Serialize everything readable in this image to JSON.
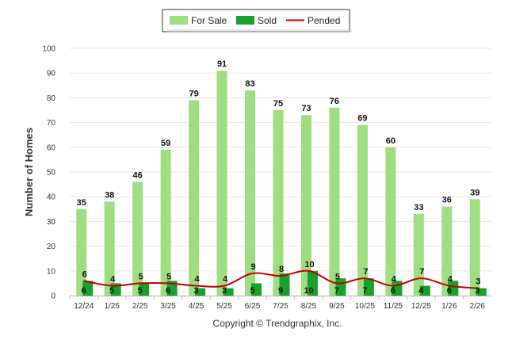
{
  "chart_data": {
    "type": "bar",
    "categories": [
      "12/24",
      "1/25",
      "2/25",
      "3/25",
      "4/25",
      "5/25",
      "6/25",
      "7/25",
      "8/25",
      "9/25",
      "10/25",
      "11/25",
      "12/25",
      "1/26",
      "2/26"
    ],
    "series": [
      {
        "name": "For Sale",
        "type": "bar",
        "color": "#9edd80",
        "values": [
          35,
          38,
          46,
          59,
          79,
          91,
          83,
          75,
          73,
          76,
          69,
          60,
          33,
          36,
          39
        ]
      },
      {
        "name": "Sold",
        "type": "bar",
        "color": "#18a12c",
        "values": [
          6,
          5,
          5,
          6,
          3,
          3,
          5,
          9,
          10,
          7,
          7,
          6,
          4,
          6,
          3
        ]
      },
      {
        "name": "Pended",
        "type": "line",
        "color": "#c00000",
        "values": [
          6,
          4,
          5,
          5,
          4,
          4,
          9,
          8,
          10,
          5,
          7,
          4,
          7,
          4,
          3
        ]
      }
    ],
    "ylabel": "Number of Homes",
    "xlabel": "",
    "ylim": [
      0,
      100
    ],
    "yticks": [
      0,
      10,
      20,
      30,
      40,
      50,
      60,
      70,
      80,
      90,
      100
    ],
    "grid": true,
    "legend": "top-center"
  },
  "footer": {
    "copyright": "Copyright © Trendgraphix, Inc."
  }
}
